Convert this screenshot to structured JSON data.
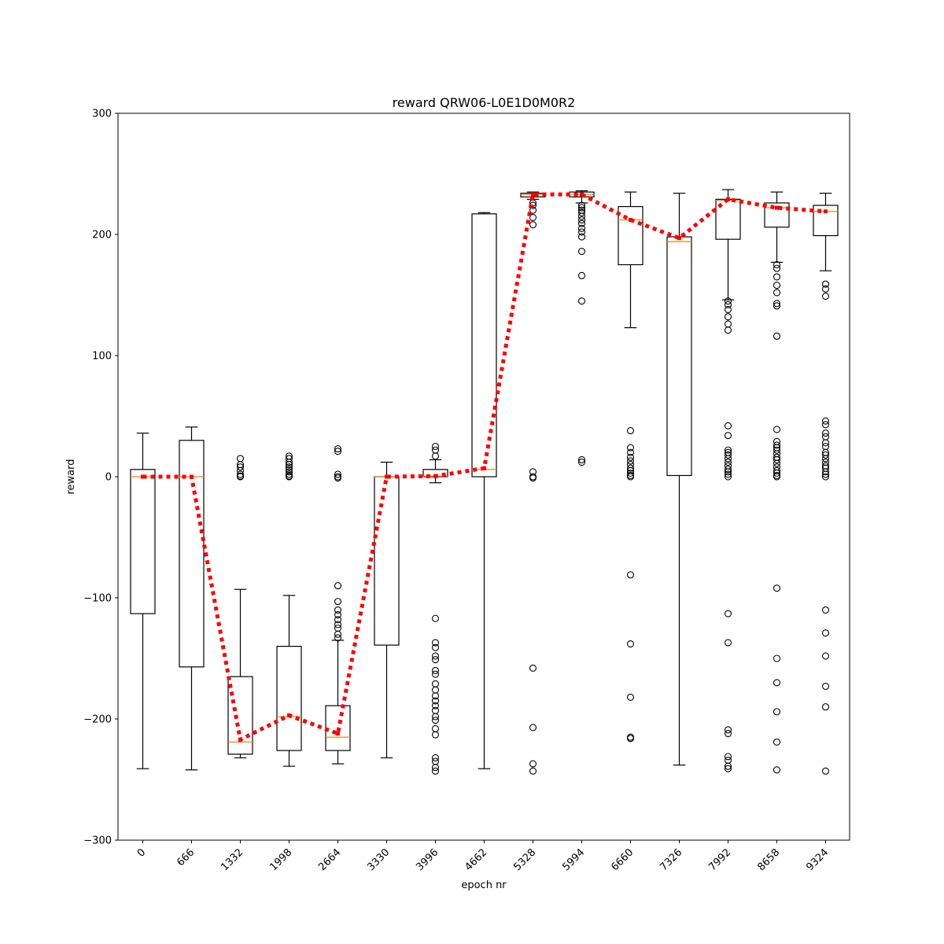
{
  "chart_data": {
    "type": "box",
    "title": "reward QRW06-L0E1D0M0R2",
    "xlabel": "epoch nr",
    "ylabel": "reward",
    "ylim": [
      -300,
      300
    ],
    "yticks": [
      -300,
      -200,
      -100,
      0,
      100,
      200,
      300
    ],
    "categories": [
      "0",
      "666",
      "1332",
      "1998",
      "2664",
      "3330",
      "3996",
      "4662",
      "5328",
      "5994",
      "6660",
      "7326",
      "7992",
      "8658",
      "9324"
    ],
    "boxes": [
      {
        "q1": -113,
        "median": 0,
        "q3": 6,
        "whisker_low": -241,
        "whisker_high": 36,
        "fliers": []
      },
      {
        "q1": -157,
        "median": 0,
        "q3": 30,
        "whisker_low": -242,
        "whisker_high": 41,
        "fliers": []
      },
      {
        "q1": -229,
        "median": -219,
        "q3": -165,
        "whisker_low": -232,
        "whisker_high": -93,
        "fliers": [
          15,
          10,
          8,
          5,
          2,
          0.5,
          0
        ]
      },
      {
        "q1": -226,
        "median": -198,
        "q3": -140,
        "whisker_low": -239,
        "whisker_high": -98,
        "fliers": [
          17,
          15,
          12,
          10,
          8,
          6,
          4,
          2,
          0.5,
          0
        ]
      },
      {
        "q1": -226,
        "median": -215,
        "q3": -189,
        "whisker_low": -237,
        "whisker_high": -135,
        "fliers": [
          23,
          21,
          2,
          0,
          -1,
          -90,
          -103,
          -110,
          -114,
          -118,
          -122,
          -125,
          -130,
          -133
        ]
      },
      {
        "q1": -139,
        "median": 0,
        "q3": 0,
        "whisker_low": -232,
        "whisker_high": 12,
        "fliers": []
      },
      {
        "q1": 0,
        "median": 0.5,
        "q3": 6,
        "whisker_low": -5,
        "whisker_high": 14,
        "fliers": [
          25,
          22,
          17,
          -117,
          -137,
          -141,
          -148,
          -151,
          -160,
          -163,
          -171,
          -176,
          -181,
          -185,
          -189,
          -193,
          -198,
          -201,
          -208,
          -213,
          -232,
          -235,
          -240,
          -243
        ]
      },
      {
        "q1": 0,
        "median": 6,
        "q3": 217,
        "whisker_low": -241,
        "whisker_high": 218,
        "fliers": []
      },
      {
        "q1": 231,
        "median": 233,
        "q3": 234,
        "whisker_low": 229,
        "whisker_high": 235,
        "fliers": [
          226,
          224,
          220,
          214,
          208,
          4,
          0,
          -1,
          -158,
          -207,
          -237,
          -243
        ]
      },
      {
        "q1": 231,
        "median": 233,
        "q3": 235,
        "whisker_low": 226,
        "whisker_high": 236,
        "fliers": [
          224,
          222,
          220,
          218,
          215,
          212,
          209,
          205,
          202,
          198,
          186,
          166,
          145,
          14,
          12
        ]
      },
      {
        "q1": 175,
        "median": 212,
        "q3": 223,
        "whisker_low": 123,
        "whisker_high": 235,
        "fliers": [
          38,
          24,
          20,
          16,
          13,
          10,
          7,
          5,
          3,
          1,
          0,
          -81,
          -138,
          -182,
          -215,
          -216
        ]
      },
      {
        "q1": 1,
        "median": 194,
        "q3": 198,
        "whisker_low": -238,
        "whisker_high": 234,
        "fliers": []
      },
      {
        "q1": 196,
        "median": 228,
        "q3": 229,
        "whisker_low": 146,
        "whisker_high": 237,
        "fliers": [
          145,
          142,
          138,
          132,
          126,
          121,
          42,
          34,
          22,
          20,
          18,
          15,
          12,
          9,
          6,
          4,
          2,
          0,
          -113,
          -137,
          -209,
          -212,
          -231,
          -234,
          -239,
          -241
        ]
      },
      {
        "q1": 206,
        "median": 222,
        "q3": 226,
        "whisker_low": 177,
        "whisker_high": 235,
        "fliers": [
          175,
          172,
          165,
          158,
          152,
          143,
          141,
          116,
          39,
          29,
          26,
          24,
          22,
          19,
          16,
          14,
          11,
          8,
          5,
          3,
          1,
          0,
          -92,
          -150,
          -170,
          -194,
          -219,
          -242
        ]
      },
      {
        "q1": 199,
        "median": 219,
        "q3": 224,
        "whisker_low": 170,
        "whisker_high": 234,
        "fliers": [
          159,
          155,
          149,
          46,
          43,
          36,
          33,
          28,
          25,
          20,
          18,
          15,
          12,
          9,
          7,
          4,
          2,
          0,
          -110,
          -129,
          -148,
          -173,
          -190,
          -243
        ]
      }
    ],
    "mean_line": {
      "values": [
        0,
        0,
        -217,
        -197,
        -212,
        0,
        0.5,
        7,
        233,
        233,
        212,
        197,
        229,
        222,
        219
      ],
      "color": "#ff0000",
      "style": "dotted"
    },
    "colors": {
      "box": "#000000",
      "median": "#ff7f0e",
      "mean_line": "#ff0000"
    }
  }
}
